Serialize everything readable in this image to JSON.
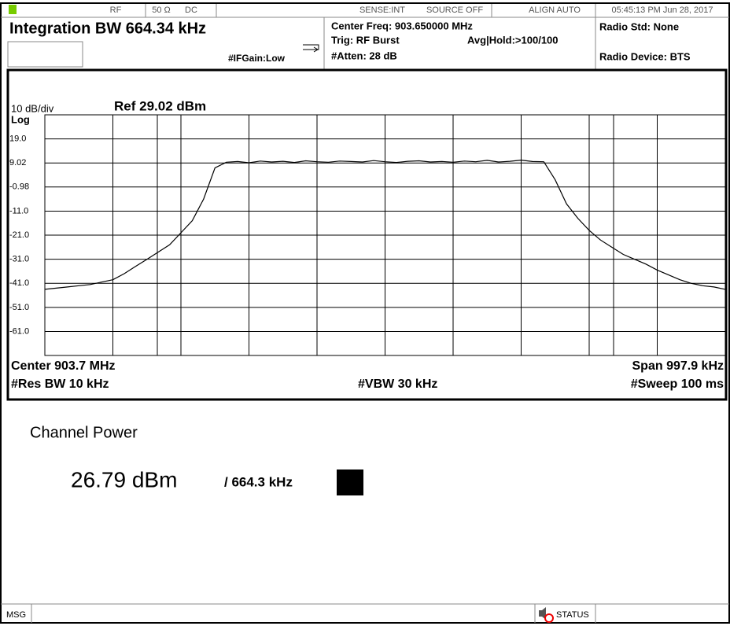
{
  "status_bar": {
    "items": [
      "RF",
      "50 Ω",
      "DC",
      "SENSE:INT",
      "SOURCE OFF",
      "ALIGN AUTO",
      "05:45:13 PM Jun 28, 2017"
    ]
  },
  "header": {
    "measurement": "Integration BW 664.34 kHz",
    "if_gain": "#IFGain:Low",
    "center_freq": "Center Freq: 903.650000 MHz",
    "trigger": "Trig: RF Burst",
    "avg_hold": "Avg|Hold:>100/100",
    "atten": "#Atten: 28 dB",
    "radio_std": "Radio Std: None",
    "radio_device": "Radio Device: BTS"
  },
  "chart_data": {
    "type": "line",
    "scale_label": "10 dB/div",
    "ref_label": "Ref 29.02 dBm",
    "log_label": "Log",
    "ylim": [
      -70.98,
      29.02
    ],
    "yticks": [
      {
        "value": 19,
        "label": "19.0"
      },
      9.02,
      -0.98,
      {
        "value": -11,
        "label": "-11.0"
      },
      {
        "value": -21,
        "label": "-21.0"
      },
      {
        "value": -31,
        "label": "-31.0"
      },
      {
        "value": -41,
        "label": "-41.0"
      },
      {
        "value": -51,
        "label": "-51.0"
      },
      {
        "value": -61,
        "label": "-61.0"
      }
    ],
    "color": "#000000",
    "values": [
      -43.5,
      -43,
      -42.5,
      -42,
      -41.5,
      -40.5,
      -39.5,
      -37,
      -34,
      -31,
      -28,
      -25,
      -20,
      -15,
      -6,
      7,
      9.3,
      9.6,
      9.1,
      9.8,
      9.4,
      9.7,
      9.2,
      9.9,
      9.5,
      9.3,
      9.8,
      9.6,
      9.4,
      10,
      9.5,
      9.2,
      9.7,
      9.9,
      9.4,
      9.6,
      9.3,
      9.8,
      9.5,
      10.1,
      9.4,
      9.7,
      10.2,
      9.6,
      9.5,
      2,
      -8,
      -14,
      -19,
      -23,
      -26,
      -29,
      -31,
      -33,
      -35.5,
      -37.5,
      -39.5,
      -41,
      -42,
      -42.5,
      -43.5
    ],
    "footer": {
      "center": "Center 903.7 MHz",
      "span": "Span 997.9 kHz",
      "res_bw": "#Res BW 10 kHz",
      "vbw": "#VBW 30 kHz",
      "sweep": "#Sweep 100 ms"
    }
  },
  "result": {
    "title": "Channel Power",
    "value": "26.79 dBm",
    "bandwidth": "/ 664.3 kHz"
  },
  "message_bar": {
    "msg": "MSG",
    "status": "STATUS"
  }
}
